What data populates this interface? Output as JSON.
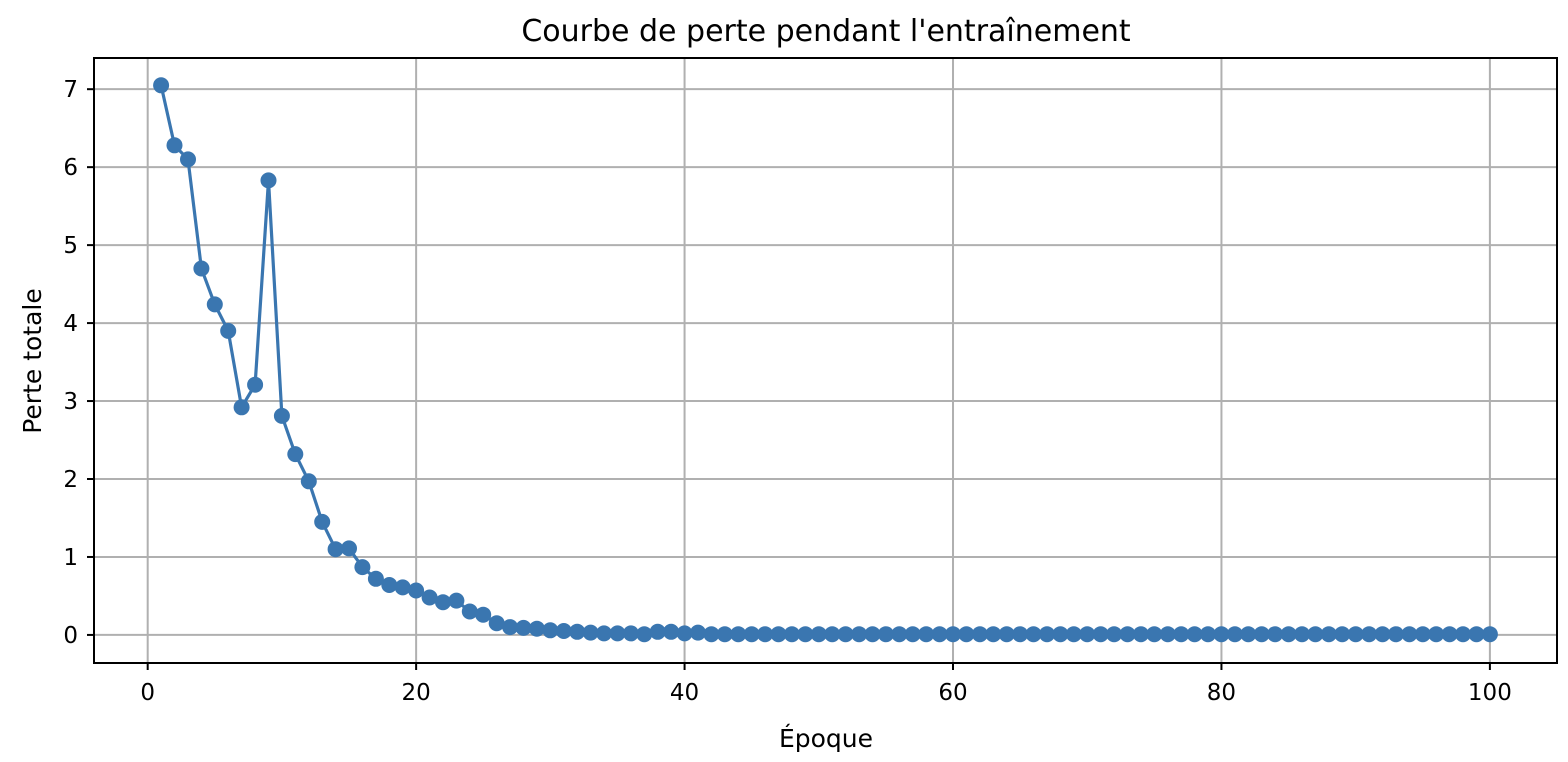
{
  "chart_data": {
    "type": "line",
    "title": "Courbe de perte pendant l'entraînement",
    "xlabel": "Époque",
    "ylabel": "Perte totale",
    "xlim": [
      -4.0,
      105.0
    ],
    "ylim": [
      -0.36,
      7.4
    ],
    "xticks": [
      0,
      20,
      40,
      60,
      80,
      100
    ],
    "yticks": [
      0,
      1,
      2,
      3,
      4,
      5,
      6,
      7
    ],
    "grid": true,
    "marker": "circle",
    "series": [
      {
        "color": "#3a76b0",
        "x": [
          1,
          2,
          3,
          4,
          5,
          6,
          7,
          8,
          9,
          10,
          11,
          12,
          13,
          14,
          15,
          16,
          17,
          18,
          19,
          20,
          21,
          22,
          23,
          24,
          25,
          26,
          27,
          28,
          29,
          30,
          31,
          32,
          33,
          34,
          35,
          36,
          37,
          38,
          39,
          40,
          41,
          42,
          43,
          44,
          45,
          46,
          47,
          48,
          49,
          50,
          51,
          52,
          53,
          54,
          55,
          56,
          57,
          58,
          59,
          60,
          61,
          62,
          63,
          64,
          65,
          66,
          67,
          68,
          69,
          70,
          71,
          72,
          73,
          74,
          75,
          76,
          77,
          78,
          79,
          80,
          81,
          82,
          83,
          84,
          85,
          86,
          87,
          88,
          89,
          90,
          91,
          92,
          93,
          94,
          95,
          96,
          97,
          98,
          99,
          100
        ],
        "y": [
          7.05,
          6.28,
          6.1,
          4.7,
          4.24,
          3.9,
          2.92,
          3.21,
          5.83,
          2.81,
          2.32,
          1.97,
          1.45,
          1.1,
          1.11,
          0.87,
          0.72,
          0.64,
          0.61,
          0.57,
          0.48,
          0.42,
          0.44,
          0.3,
          0.26,
          0.15,
          0.1,
          0.09,
          0.08,
          0.06,
          0.05,
          0.04,
          0.03,
          0.02,
          0.02,
          0.02,
          0.01,
          0.04,
          0.04,
          0.02,
          0.03,
          0.01,
          0.01,
          0.01,
          0.01,
          0.01,
          0.01,
          0.01,
          0.01,
          0.01,
          0.01,
          0.01,
          0.01,
          0.01,
          0.01,
          0.01,
          0.01,
          0.01,
          0.01,
          0.01,
          0.01,
          0.01,
          0.01,
          0.01,
          0.01,
          0.01,
          0.01,
          0.01,
          0.01,
          0.01,
          0.01,
          0.01,
          0.01,
          0.01,
          0.01,
          0.01,
          0.01,
          0.01,
          0.01,
          0.01,
          0.01,
          0.01,
          0.01,
          0.01,
          0.01,
          0.01,
          0.01,
          0.01,
          0.01,
          0.01,
          0.01,
          0.01,
          0.01,
          0.01,
          0.01,
          0.01,
          0.01,
          0.01,
          0.01,
          0.01
        ]
      }
    ]
  }
}
